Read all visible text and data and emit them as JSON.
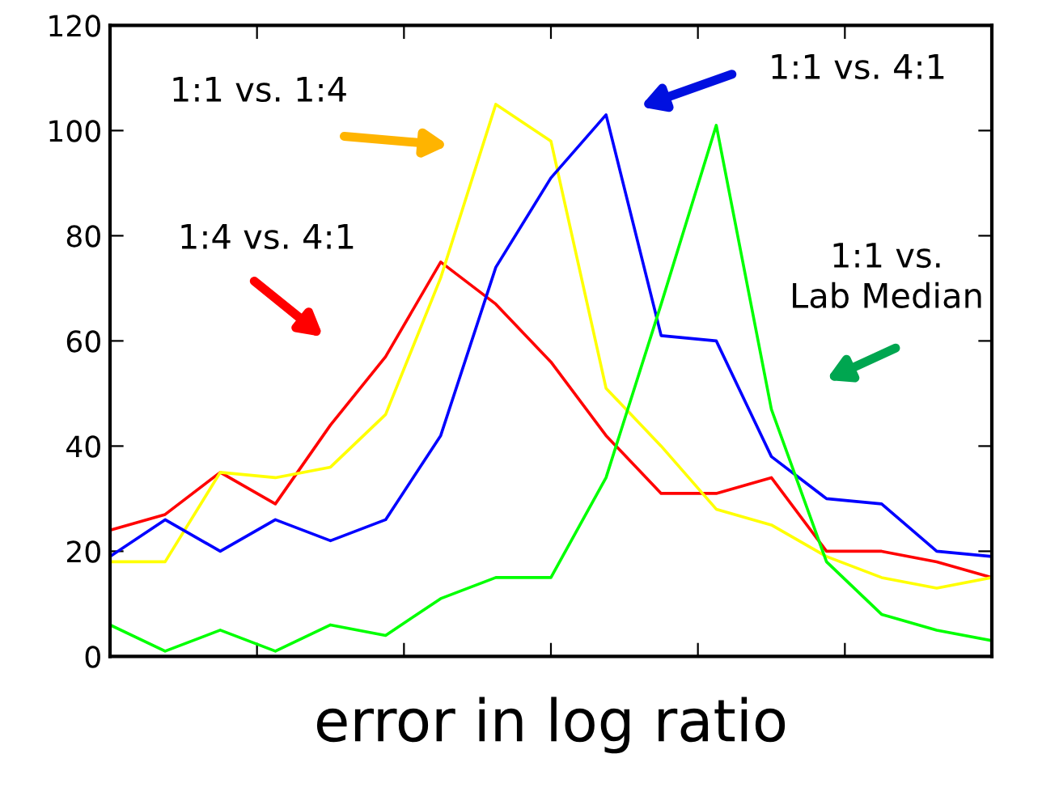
{
  "chart_data": {
    "type": "line",
    "xlabel": "error in log ratio",
    "categories": [
      null,
      null,
      null,
      null,
      null,
      null,
      null,
      null,
      null,
      null,
      null,
      null,
      null,
      null,
      null,
      null,
      null
    ],
    "ylim": [
      0,
      120
    ],
    "yticks": [
      0,
      20,
      40,
      60,
      80,
      100,
      120
    ],
    "tick_labels": "y",
    "marker": "none",
    "line_style": "solid",
    "annotations": [
      "1:4 vs. 4:1",
      "1:1 vs. 1:4",
      "1:1 vs. 4:1",
      "1:1 vs.\nLab Median"
    ],
    "series": [
      {
        "color": "#ff0000",
        "values": [
          24,
          27,
          35,
          29,
          44,
          57,
          75,
          67,
          56,
          42,
          31,
          31,
          34,
          20,
          20,
          18,
          15
        ]
      },
      {
        "color": "#ffff00",
        "values": [
          18,
          18,
          35,
          34,
          36,
          46,
          72,
          105,
          98,
          51,
          40,
          28,
          25,
          19,
          15,
          13,
          15
        ]
      },
      {
        "color": "#0000ff",
        "values": [
          19,
          26,
          20,
          26,
          22,
          26,
          42,
          74,
          91,
          103,
          61,
          60,
          38,
          30,
          29,
          20,
          19
        ]
      },
      {
        "color": "#00ff00",
        "values": [
          6,
          1,
          5,
          1,
          6,
          4,
          11,
          15,
          15,
          34,
          67,
          101,
          47,
          18,
          8,
          5,
          3
        ]
      }
    ]
  }
}
